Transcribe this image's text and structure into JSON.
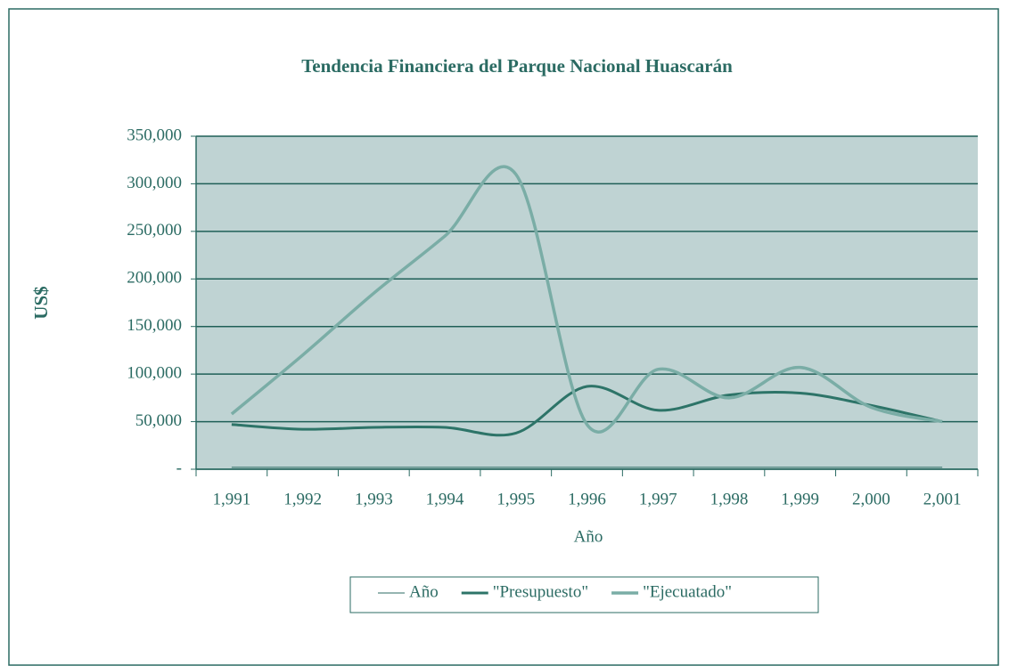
{
  "chart_data": {
    "type": "line",
    "title": "Tendencia Financiera del Parque Nacional Huascarán",
    "x_label": "Año",
    "y_label": "US$",
    "categories": [
      "1,991",
      "1,992",
      "1,993",
      "1,994",
      "1,995",
      "1,996",
      "1,997",
      "1,998",
      "1,999",
      "2,000",
      "2,001"
    ],
    "series": [
      {
        "name": "Año",
        "color": "#2b6b63",
        "width": 1,
        "values": [
          1991,
          1992,
          1993,
          1994,
          1995,
          1996,
          1997,
          1998,
          1999,
          2000,
          2001
        ]
      },
      {
        "name": "\"Presupuesto\"",
        "color": "#2d7468",
        "width": 3,
        "values": [
          47000,
          42000,
          44000,
          44000,
          38000,
          87000,
          62000,
          78000,
          80000,
          67000,
          50000
        ]
      },
      {
        "name": "\"Ejecuatado\"",
        "color": "#7aada6",
        "width": 3.5,
        "values": [
          58000,
          120000,
          185000,
          245000,
          310000,
          47000,
          105000,
          75000,
          107000,
          65000,
          50000
        ]
      }
    ],
    "ylim": [
      0,
      350000
    ],
    "yticks": [
      {
        "value": 0,
        "label": "-"
      },
      {
        "value": 50000,
        "label": "50,000"
      },
      {
        "value": 100000,
        "label": "100,000"
      },
      {
        "value": 150000,
        "label": "150,000"
      },
      {
        "value": 200000,
        "label": "200,000"
      },
      {
        "value": 250000,
        "label": "250,000"
      },
      {
        "value": 300000,
        "label": "300,000"
      },
      {
        "value": 350000,
        "label": "350,000"
      }
    ],
    "grid": true,
    "legend": "bottom"
  }
}
